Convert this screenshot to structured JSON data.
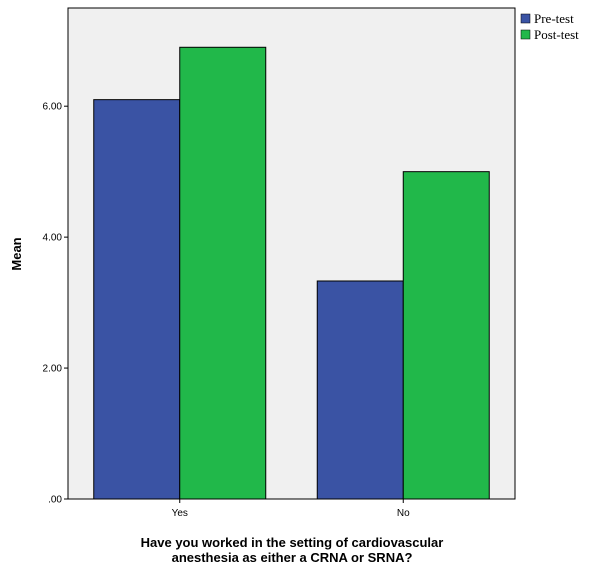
{
  "chart_data": {
    "type": "bar",
    "categories": [
      "Yes",
      "No"
    ],
    "series": [
      {
        "name": "Pre-test",
        "values": [
          6.1,
          3.33
        ],
        "color": "#3a53a4"
      },
      {
        "name": "Post-test",
        "values": [
          6.9,
          5.0
        ],
        "color": "#21b84a"
      }
    ],
    "xlabel": [
      "Have you worked in the setting of cardiovascular",
      "anesthesia as either a CRNA or SRNA?"
    ],
    "ylabel": "Mean",
    "ylim": [
      0,
      7.5
    ],
    "yticks": [
      0,
      2,
      4,
      6
    ],
    "ytick_labels": [
      ".00",
      "2.00",
      "4.00",
      "6.00"
    ],
    "grid": false,
    "legend_position": "top-right",
    "plot_background": "#f0f0f0"
  }
}
